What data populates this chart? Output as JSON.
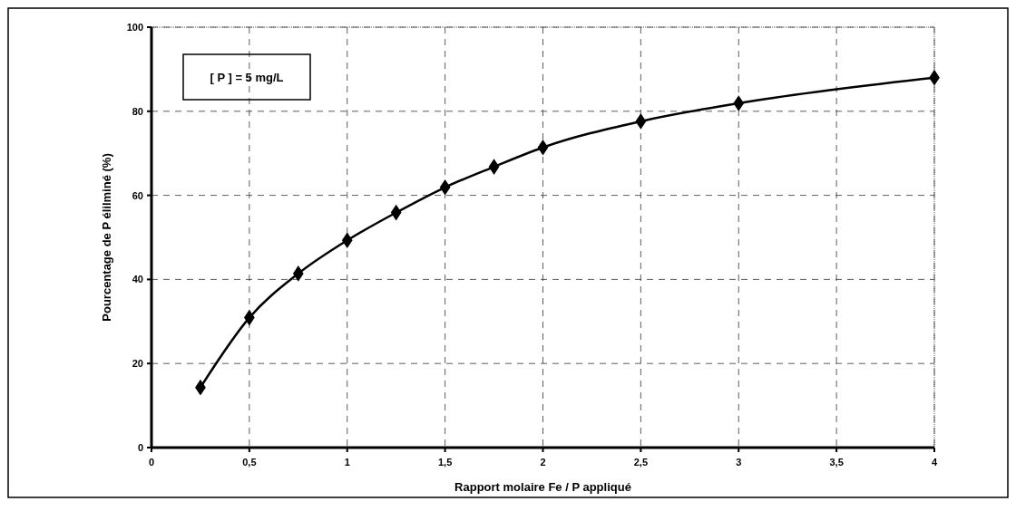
{
  "chart_data": {
    "type": "line",
    "xlabel": "Rapport molaire Fe / P appliqué",
    "ylabel": "Pourcentage de P élilminé (%)",
    "annotations": [
      "[ P ] = 5 mg/L"
    ],
    "x": [
      0.25,
      0.5,
      0.75,
      1,
      1.25,
      1.5,
      1.75,
      2,
      2.5,
      3,
      4
    ],
    "series": [
      {
        "color": "#000000",
        "values": [
          14.3,
          30.9,
          41.4,
          49.3,
          55.9,
          61.9,
          66.8,
          71.4,
          77.6,
          81.9,
          88.0
        ]
      }
    ],
    "xlim": [
      0,
      4
    ],
    "xticks": [
      0,
      {
        "value": 0.5,
        "label": "0,5"
      },
      1,
      {
        "value": 1.5,
        "label": "1,5"
      },
      2,
      {
        "value": 2.5,
        "label": "2,5"
      },
      3,
      {
        "value": 3.5,
        "label": "3,5"
      },
      4
    ],
    "ylim": [
      0,
      100
    ],
    "yticks": [
      0,
      20,
      40,
      60,
      80,
      100
    ],
    "grid": true,
    "marker": "diamond",
    "line_style": "solid"
  }
}
